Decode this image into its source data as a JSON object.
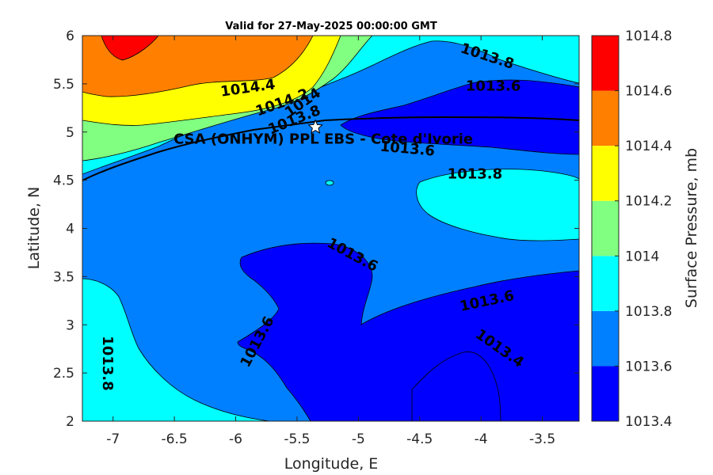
{
  "chart_data": {
    "type": "heatmap",
    "subtype": "filled-contour",
    "title": "Valid for 27-May-2025 00:00:00 GMT",
    "xlabel": "Longitude, E",
    "ylabel": "Latitude, N",
    "xlim": [
      -7.25,
      -3.2
    ],
    "ylim": [
      2,
      6
    ],
    "xticks": [
      -7,
      -6.5,
      -6,
      -5.5,
      -5,
      -4.5,
      -4,
      -3.5
    ],
    "xtick_labels": [
      "-7",
      "-6.5",
      "-6",
      "-5.5",
      "-5",
      "-4.5",
      "-4",
      "-3.5"
    ],
    "yticks": [
      2,
      2.5,
      3,
      3.5,
      4,
      4.5,
      5,
      5.5,
      6
    ],
    "ytick_labels": [
      "2",
      "2.5",
      "3",
      "3.5",
      "4",
      "4.5",
      "5",
      "5.5",
      "6"
    ],
    "colorbar": {
      "label": "Surface Pressure, mb",
      "levels": [
        1013.4,
        1013.6,
        1013.8,
        1014,
        1014.2,
        1014.4,
        1014.6,
        1014.8
      ],
      "tick_labels": [
        "1013.4",
        "1013.6",
        "1013.8",
        "1014",
        "1014.2",
        "1014.4",
        "1014.6",
        "1014.8"
      ],
      "colors": [
        "#0000ff",
        "#0080ff",
        "#00ffff",
        "#80ff80",
        "#ffff00",
        "#ff8000",
        "#ff0000",
        "#800000"
      ]
    },
    "contour_labels": [
      {
        "text": "1014.4",
        "lon": -5.9,
        "lat": 5.45,
        "angle": -8
      },
      {
        "text": "1014.2",
        "lon": -5.62,
        "lat": 5.3,
        "angle": -20
      },
      {
        "text": "1014",
        "lon": -5.45,
        "lat": 5.3,
        "angle": -35
      },
      {
        "text": "1013.8",
        "lon": -5.52,
        "lat": 5.12,
        "angle": -22
      },
      {
        "text": "1013.8",
        "lon": -3.95,
        "lat": 5.78,
        "angle": 18
      },
      {
        "text": "1013.6",
        "lon": -3.9,
        "lat": 5.47,
        "angle": 0
      },
      {
        "text": "1013.6",
        "lon": -4.6,
        "lat": 4.82,
        "angle": 5
      },
      {
        "text": "1013.8",
        "lon": -4.05,
        "lat": 4.56,
        "angle": 0
      },
      {
        "text": "1013.6",
        "lon": -5.05,
        "lat": 3.72,
        "angle": 28
      },
      {
        "text": "1013.6",
        "lon": -3.95,
        "lat": 3.24,
        "angle": -12
      },
      {
        "text": "1013.6",
        "lon": -5.82,
        "lat": 2.82,
        "angle": -62
      },
      {
        "text": "1013.4",
        "lon": -3.85,
        "lat": 2.75,
        "angle": 35
      },
      {
        "text": "1013.8",
        "lon": -7.05,
        "lat": 2.6,
        "angle": 90
      }
    ],
    "station": {
      "name": "CSA (ONHYM) PPL EBS  - Cote d'Ivorie",
      "lon": -5.35,
      "lat": 5.05
    },
    "grid": false
  }
}
